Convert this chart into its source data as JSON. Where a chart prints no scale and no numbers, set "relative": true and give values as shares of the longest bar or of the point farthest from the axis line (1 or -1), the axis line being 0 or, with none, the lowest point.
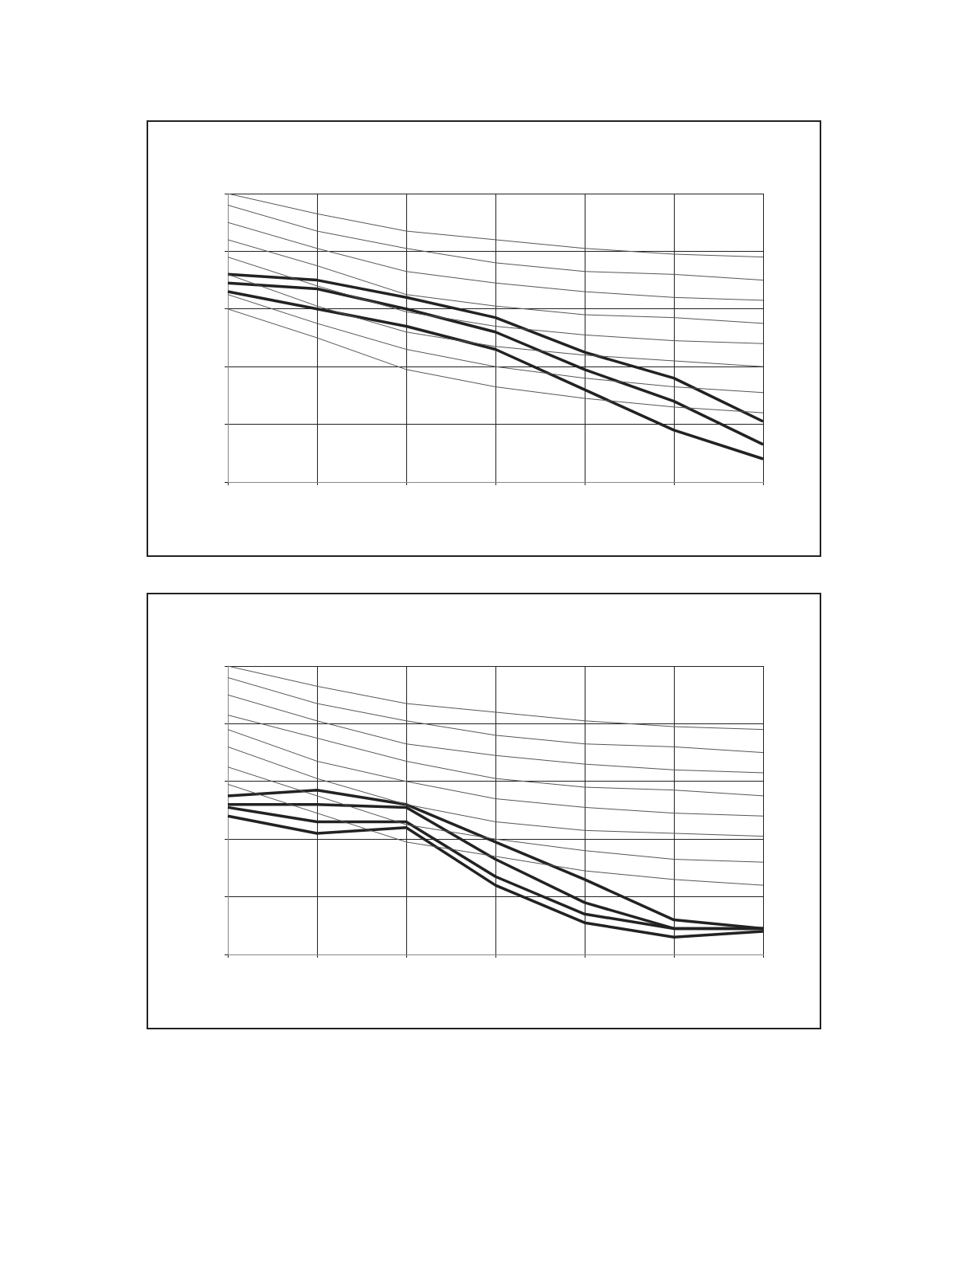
{
  "chart_data": [
    {
      "type": "line",
      "relative": true,
      "grid": true,
      "legend": false,
      "marker": "none",
      "line_style": "solid",
      "categories": [
        null,
        null,
        null,
        null,
        null,
        null,
        null
      ],
      "series": [
        {
          "color": "#555555",
          "values": [
            1,
            0.93,
            0.87,
            0.84,
            0.81,
            0.79,
            0.78
          ]
        },
        {
          "color": "#555555",
          "values": [
            0.96,
            0.87,
            0.81,
            0.76,
            0.73,
            0.72,
            0.7
          ]
        },
        {
          "color": "#555555",
          "values": [
            0.9,
            0.81,
            0.73,
            0.69,
            0.66,
            0.64,
            0.63
          ]
        },
        {
          "color": "#555555",
          "values": [
            0.84,
            0.75,
            0.65,
            0.61,
            0.58,
            0.57,
            0.55
          ]
        },
        {
          "color": "#555555",
          "values": [
            0.78,
            0.68,
            0.59,
            0.54,
            0.51,
            0.49,
            0.48
          ]
        },
        {
          "color": "#555555",
          "values": [
            0.72,
            0.61,
            0.52,
            0.47,
            0.44,
            0.42,
            0.4
          ]
        },
        {
          "color": "#555555",
          "values": [
            0.65,
            0.55,
            0.46,
            0.4,
            0.36,
            0.33,
            0.31
          ]
        },
        {
          "color": "#555555",
          "values": [
            0.6,
            0.5,
            0.39,
            0.33,
            0.29,
            0.26,
            0.24
          ]
        },
        {
          "color": "#222222",
          "values": [
            0.72,
            0.7,
            0.64,
            0.57,
            0.45,
            0.36,
            0.21
          ]
        },
        {
          "color": "#222222",
          "values": [
            0.69,
            0.67,
            0.6,
            0.52,
            0.39,
            0.28,
            0.13
          ]
        },
        {
          "color": "#222222",
          "values": [
            0.66,
            0.6,
            0.54,
            0.46,
            0.32,
            0.18,
            0.08
          ]
        }
      ]
    },
    {
      "type": "line",
      "relative": true,
      "grid": true,
      "legend": false,
      "marker": "none",
      "line_style": "solid",
      "categories": [
        null,
        null,
        null,
        null,
        null,
        null,
        null
      ],
      "series": [
        {
          "color": "#555555",
          "values": [
            1,
            0.93,
            0.87,
            0.84,
            0.81,
            0.79,
            0.78
          ]
        },
        {
          "color": "#555555",
          "values": [
            0.96,
            0.87,
            0.81,
            0.76,
            0.73,
            0.72,
            0.7
          ]
        },
        {
          "color": "#555555",
          "values": [
            0.9,
            0.81,
            0.73,
            0.69,
            0.66,
            0.64,
            0.63
          ]
        },
        {
          "color": "#555555",
          "values": [
            0.83,
            0.75,
            0.67,
            0.61,
            0.58,
            0.57,
            0.55
          ]
        },
        {
          "color": "#555555",
          "values": [
            0.78,
            0.67,
            0.6,
            0.54,
            0.51,
            0.49,
            0.48
          ]
        },
        {
          "color": "#555555",
          "values": [
            0.72,
            0.61,
            0.52,
            0.46,
            0.43,
            0.42,
            0.41
          ]
        },
        {
          "color": "#555555",
          "values": [
            0.65,
            0.55,
            0.45,
            0.4,
            0.36,
            0.33,
            0.32
          ]
        },
        {
          "color": "#555555",
          "values": [
            0.59,
            0.49,
            0.39,
            0.34,
            0.29,
            0.26,
            0.24
          ]
        },
        {
          "color": "#222222",
          "values": [
            0.55,
            0.57,
            0.52,
            0.39,
            0.26,
            0.12,
            0.09
          ]
        },
        {
          "color": "#222222",
          "values": [
            0.52,
            0.52,
            0.51,
            0.33,
            0.18,
            0.09,
            0.09
          ]
        },
        {
          "color": "#222222",
          "values": [
            0.51,
            0.46,
            0.46,
            0.27,
            0.14,
            0.09,
            0.09
          ]
        },
        {
          "color": "#222222",
          "values": [
            0.48,
            0.42,
            0.44,
            0.24,
            0.11,
            0.06,
            0.08
          ]
        }
      ]
    }
  ]
}
